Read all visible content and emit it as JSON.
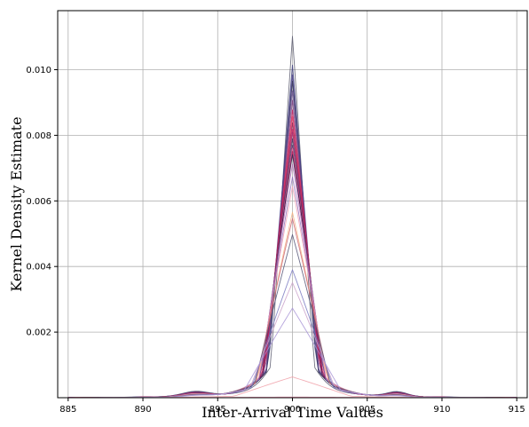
{
  "chart_data": {
    "type": "line",
    "title": "",
    "xlabel": "Inter-Arrival Time Values",
    "ylabel": "Kernel Density Estimate",
    "xlim": [
      884.3,
      915.7
    ],
    "ylim": [
      0.0,
      0.0118
    ],
    "xticks": [
      885,
      890,
      895,
      900,
      905,
      910,
      915
    ],
    "xtick_labels": [
      "885",
      "890",
      "895",
      "900",
      "905",
      "910",
      "915"
    ],
    "yticks": [
      0.002,
      0.004,
      0.006,
      0.008,
      0.01
    ],
    "ytick_labels": [
      "0.002",
      "0.004",
      "0.006",
      "0.008",
      "0.010"
    ],
    "grid": true,
    "series": [
      {
        "peak": 0.0113,
        "width": 0.55,
        "color": "#5a5a6e"
      },
      {
        "peak": 0.0104,
        "width": 0.62,
        "color": "#3b3b7a"
      },
      {
        "peak": 0.0101,
        "width": 0.66,
        "color": "#4b3f8a"
      },
      {
        "peak": 0.0099,
        "width": 0.64,
        "color": "#2e2e55"
      },
      {
        "peak": 0.0096,
        "width": 0.68,
        "color": "#6a4c93"
      },
      {
        "peak": 0.0093,
        "width": 0.7,
        "color": "#7a3b7a"
      },
      {
        "peak": 0.009,
        "width": 0.72,
        "color": "#c2185b"
      },
      {
        "peak": 0.0088,
        "width": 0.73,
        "color": "#e53960"
      },
      {
        "peak": 0.0086,
        "width": 0.74,
        "color": "#8e1a4f"
      },
      {
        "peak": 0.0084,
        "width": 0.75,
        "color": "#d81b60"
      },
      {
        "peak": 0.0083,
        "width": 0.76,
        "color": "#a0306e"
      },
      {
        "peak": 0.0081,
        "width": 0.77,
        "color": "#3d2f5c"
      },
      {
        "peak": 0.0079,
        "width": 0.78,
        "color": "#5c2a66"
      },
      {
        "peak": 0.0078,
        "width": 0.8,
        "color": "#f06292"
      },
      {
        "peak": 0.0077,
        "width": 0.79,
        "color": "#ad1457"
      },
      {
        "peak": 0.0076,
        "width": 0.82,
        "color": "#2a1f4a"
      },
      {
        "peak": 0.0073,
        "width": 0.84,
        "color": "#b56ab5"
      },
      {
        "peak": 0.0069,
        "width": 0.86,
        "color": "#8f6fb8"
      },
      {
        "peak": 0.0066,
        "width": 0.88,
        "color": "#f3a0b5"
      },
      {
        "peak": 0.0058,
        "width": 0.92,
        "color": "#f4b183"
      },
      {
        "peak": 0.0056,
        "width": 0.95,
        "color": "#cc6677"
      },
      {
        "peak": 0.0051,
        "width": 0.98,
        "color": "#555577"
      },
      {
        "peak": 0.004,
        "width": 1.05,
        "color": "#7a7ac2"
      },
      {
        "peak": 0.0036,
        "width": 1.1,
        "color": "#c9a0c9"
      },
      {
        "peak": 0.0028,
        "width": 1.25,
        "color": "#a793d6"
      },
      {
        "peak": 0.00065,
        "width": 1.5,
        "color": "#f0a0a8"
      },
      {
        "peak": 2e-05,
        "width": 3.0,
        "color": "#f48fb1"
      }
    ]
  }
}
